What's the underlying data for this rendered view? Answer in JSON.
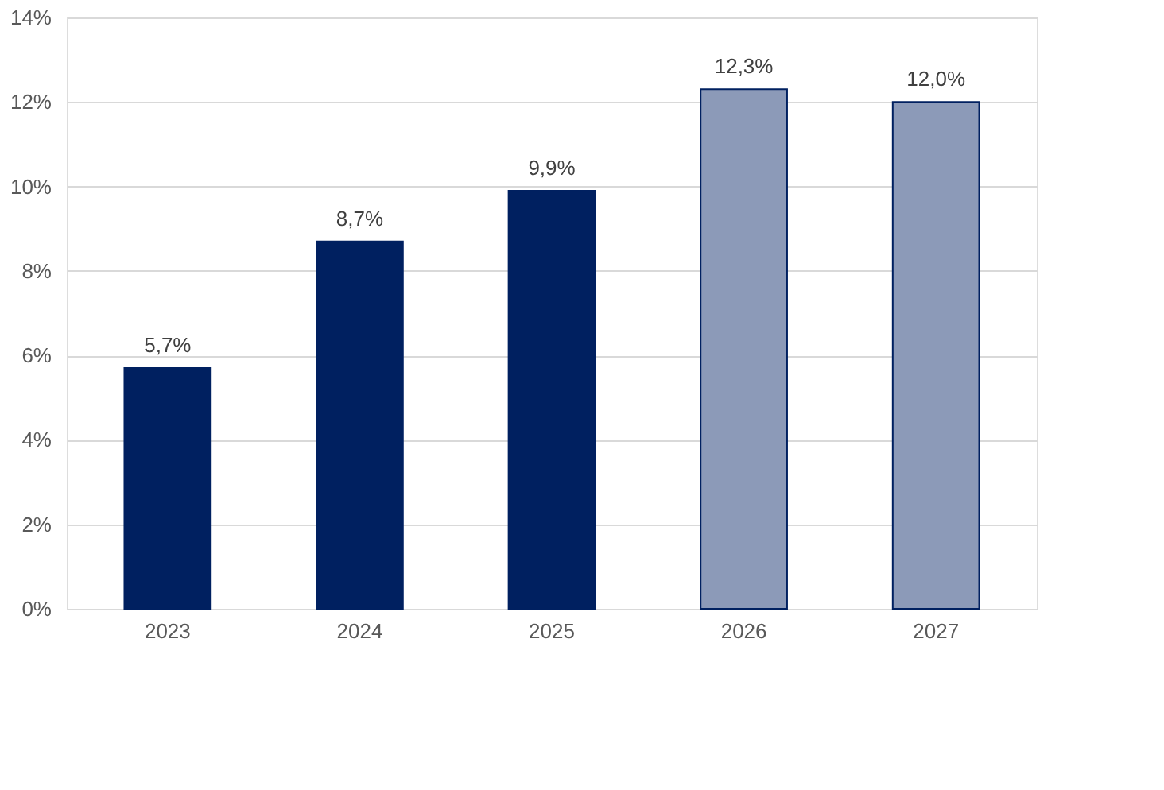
{
  "chart_data": {
    "type": "bar",
    "categories": [
      "2023",
      "2024",
      "2025",
      "2026",
      "2027"
    ],
    "values": [
      5.7,
      8.7,
      9.9,
      12.3,
      12.0
    ],
    "colors": [
      "#002060",
      "#002060",
      "#002060",
      "#8c9ab8",
      "#8c9ab8"
    ],
    "value_labels": [
      "5,7%",
      "8,7%",
      "9,9%",
      "12,3%",
      "12,0%"
    ],
    "ylim": [
      0,
      14
    ],
    "yticks": [
      {
        "value": 0,
        "label": "0%"
      },
      {
        "value": 2,
        "label": "2%"
      },
      {
        "value": 4,
        "label": "4%"
      },
      {
        "value": 6,
        "label": "6%"
      },
      {
        "value": 8,
        "label": "8%"
      },
      {
        "value": 10,
        "label": "10%"
      },
      {
        "value": 12,
        "label": "12%"
      },
      {
        "value": 14,
        "label": "14%"
      }
    ],
    "grid": "y"
  }
}
